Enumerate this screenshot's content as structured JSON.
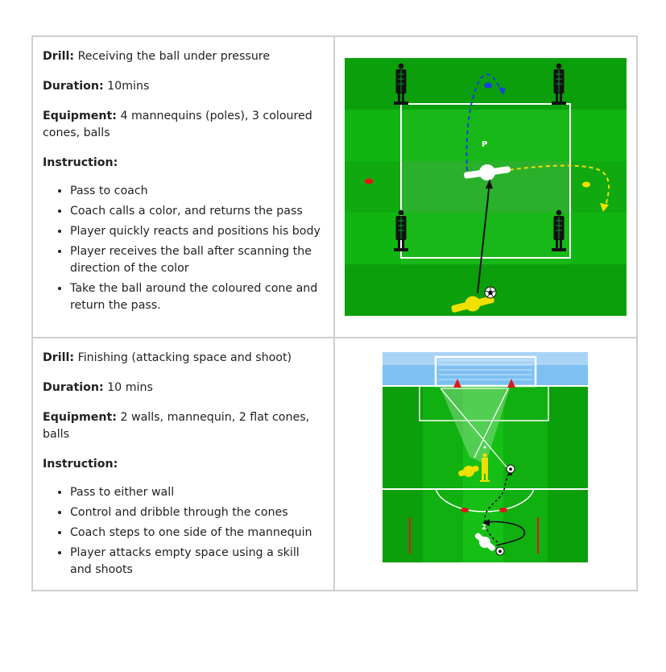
{
  "drills": [
    {
      "drill_label": "Drill:",
      "drill_name": "Receiving the ball under pressure",
      "duration_label": "Duration:",
      "duration_value": "10mins",
      "equipment_label": "Equipment:",
      "equipment_value": "4 mannequins (poles), 3 coloured cones, balls",
      "instruction_label": "Instruction:",
      "instructions": [
        "Pass to coach",
        "Coach calls a color, and returns the pass",
        "Player quickly reacts and positions his body",
        "Player receives the ball after scanning the direction of the color",
        "Take the ball around the coloured cone and return the pass."
      ],
      "diagram": {
        "player_marker": "P"
      }
    },
    {
      "drill_label": "Drill:",
      "drill_name": "Finishing (attacking space and shoot)",
      "duration_label": "Duration:",
      "duration_value": "10 mins",
      "equipment_label": "Equipment:",
      "equipment_value": "2 walls, mannequin, 2 flat cones, balls",
      "instruction_label": "Instruction:",
      "instructions": [
        "Pass to either wall",
        "Control and dribble through the cones",
        "Coach steps to one side of the mannequin",
        "Player attacks empty space using a skill and shoots"
      ],
      "diagram": {
        "player_marker": "2"
      }
    }
  ],
  "colors": {
    "border": "#cfcfcf",
    "grass_light": "#11b511",
    "grass_dark": "#0a9a0a",
    "mannequin": "#111111",
    "blue": "#1a3fe0",
    "yellow": "#f0e000",
    "red": "#e01818",
    "sky": "#6fb2f0"
  }
}
